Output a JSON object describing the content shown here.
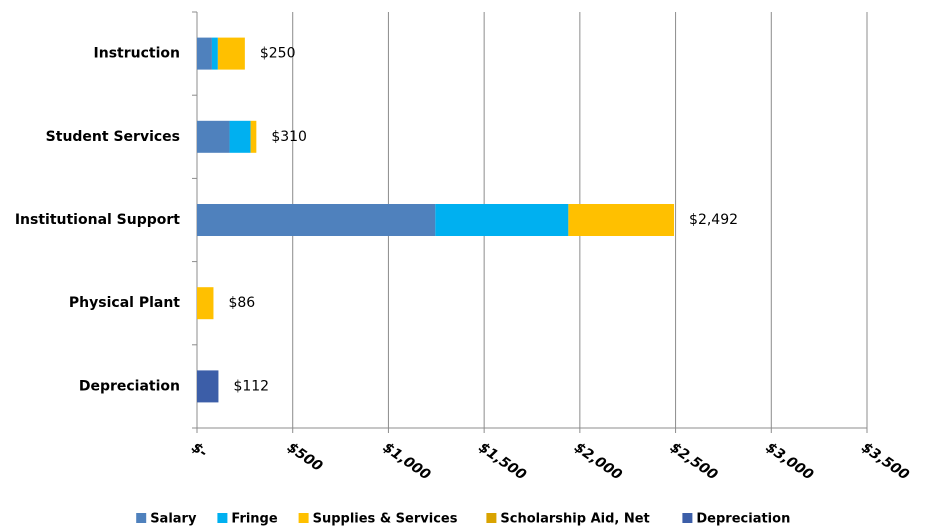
{
  "chart_data": {
    "type": "stacked_barh",
    "categories": [
      "Instruction",
      "Student Services",
      "Institutional Support",
      "Physical Plant",
      "Depreciation"
    ],
    "series": [
      {
        "name": "Salary",
        "color": "#4f81bd",
        "values": [
          78,
          170,
          1245,
          0,
          0
        ]
      },
      {
        "name": "Fringe",
        "color": "#00b0f0",
        "values": [
          31,
          110,
          695,
          0,
          0
        ]
      },
      {
        "name": "Supplies & Services",
        "color": "#ffc000",
        "values": [
          141,
          30,
          552,
          86,
          0
        ]
      },
      {
        "name": "Scholarship Aid, Net",
        "color": "#d9a300",
        "values": [
          0,
          0,
          0,
          0,
          0
        ]
      },
      {
        "name": "Depreciation",
        "color": "#3c5ea8",
        "values": [
          0,
          0,
          0,
          0,
          112
        ]
      }
    ],
    "total_labels": [
      "$250",
      "$310",
      "$2,492",
      "$86",
      "$112"
    ],
    "xlim": [
      0,
      3500
    ],
    "xticks": [
      {
        "value": 0,
        "label": "$-"
      },
      {
        "value": 500,
        "label": "$500"
      },
      {
        "value": 1000,
        "label": "$1,000"
      },
      {
        "value": 1500,
        "label": "$1,500"
      },
      {
        "value": 2000,
        "label": "$2,000"
      },
      {
        "value": 2500,
        "label": "$2,500"
      },
      {
        "value": 3000,
        "label": "$3,000"
      },
      {
        "value": 3500,
        "label": "$3,500"
      }
    ],
    "grid": true,
    "legend": "bottom"
  }
}
